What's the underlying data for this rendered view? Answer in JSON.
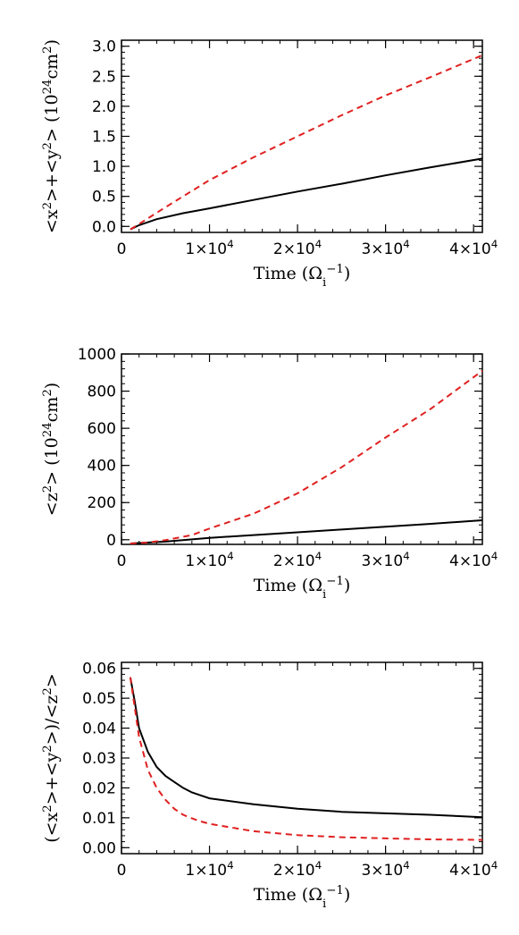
{
  "chart_data": [
    {
      "type": "line",
      "xlabel": "Time (Ω_i^-1)",
      "ylabel": "<x²>+<y²> (10²⁴cm²)",
      "xlim": [
        0,
        41000
      ],
      "ylim": [
        -0.1,
        3.1
      ],
      "x_tick_labels": [
        "0",
        "1×10⁴",
        "2×10⁴",
        "3×10⁴",
        "4×10⁴"
      ],
      "y_tick_labels": [
        "0.0",
        "0.5",
        "1.0",
        "1.5",
        "2.0",
        "2.5",
        "3.0"
      ],
      "series": [
        {
          "color": "#000000",
          "dash": "solid",
          "x": [
            1000,
            2000,
            4000,
            7000,
            10000,
            15000,
            20000,
            25000,
            30000,
            35000,
            41000
          ],
          "y": [
            -0.05,
            0.02,
            0.12,
            0.22,
            0.3,
            0.44,
            0.58,
            0.71,
            0.85,
            0.98,
            1.13
          ]
        },
        {
          "color": "#e02020",
          "dash": "dashed",
          "x": [
            1000,
            2000,
            5000,
            10000,
            15000,
            20000,
            25000,
            30000,
            35000,
            41000
          ],
          "y": [
            -0.05,
            0.04,
            0.32,
            0.77,
            1.15,
            1.5,
            1.85,
            2.18,
            2.48,
            2.85
          ]
        }
      ]
    },
    {
      "type": "line",
      "xlabel": "Time (Ω_i^-1)",
      "ylabel": "<z²> (10²⁴cm²)",
      "xlim": [
        0,
        41000
      ],
      "ylim": [
        -25,
        1000
      ],
      "x_tick_labels": [
        "0",
        "1×10⁴",
        "2×10⁴",
        "3×10⁴",
        "4×10⁴"
      ],
      "y_tick_labels": [
        "0",
        "200",
        "400",
        "600",
        "800",
        "1000"
      ],
      "series": [
        {
          "color": "#000000",
          "dash": "solid",
          "x": [
            1000,
            5000,
            10000,
            15000,
            20000,
            25000,
            30000,
            35000,
            41000
          ],
          "y": [
            -20,
            -10,
            10,
            25,
            40,
            55,
            70,
            85,
            105
          ]
        },
        {
          "color": "#e02020",
          "dash": "dashed",
          "x": [
            1000,
            3000,
            5000,
            8000,
            10000,
            15000,
            20000,
            25000,
            30000,
            35000,
            41000
          ],
          "y": [
            -20,
            -15,
            -2,
            25,
            60,
            140,
            250,
            390,
            550,
            700,
            910
          ]
        }
      ]
    },
    {
      "type": "line",
      "xlabel": "Time (Ω_i^-1)",
      "ylabel": "(<x²>+<y²>)/<z²>",
      "xlim": [
        0,
        41000
      ],
      "ylim": [
        -0.002,
        0.062
      ],
      "x_tick_labels": [
        "0",
        "1×10⁴",
        "2×10⁴",
        "3×10⁴",
        "4×10⁴"
      ],
      "y_tick_labels": [
        "0.00",
        "0.01",
        "0.02",
        "0.03",
        "0.04",
        "0.05",
        "0.06"
      ],
      "series": [
        {
          "color": "#000000",
          "dash": "solid",
          "x": [
            1000,
            1500,
            2000,
            3000,
            4000,
            5000,
            6000,
            7000,
            8000,
            9000,
            10000,
            15000,
            20000,
            25000,
            30000,
            35000,
            41000
          ],
          "y": [
            0.057,
            0.049,
            0.04,
            0.032,
            0.027,
            0.024,
            0.022,
            0.02,
            0.0185,
            0.0175,
            0.0165,
            0.0145,
            0.013,
            0.012,
            0.0115,
            0.011,
            0.0102
          ]
        },
        {
          "color": "#e02020",
          "dash": "dashed",
          "x": [
            1000,
            1500,
            2000,
            3000,
            4000,
            5000,
            6000,
            7000,
            8000,
            9000,
            10000,
            15000,
            20000,
            25000,
            30000,
            35000,
            41000
          ],
          "y": [
            0.057,
            0.047,
            0.037,
            0.026,
            0.02,
            0.016,
            0.013,
            0.011,
            0.0098,
            0.0088,
            0.008,
            0.0055,
            0.0042,
            0.0035,
            0.0031,
            0.0028,
            0.0026
          ]
        }
      ]
    }
  ]
}
